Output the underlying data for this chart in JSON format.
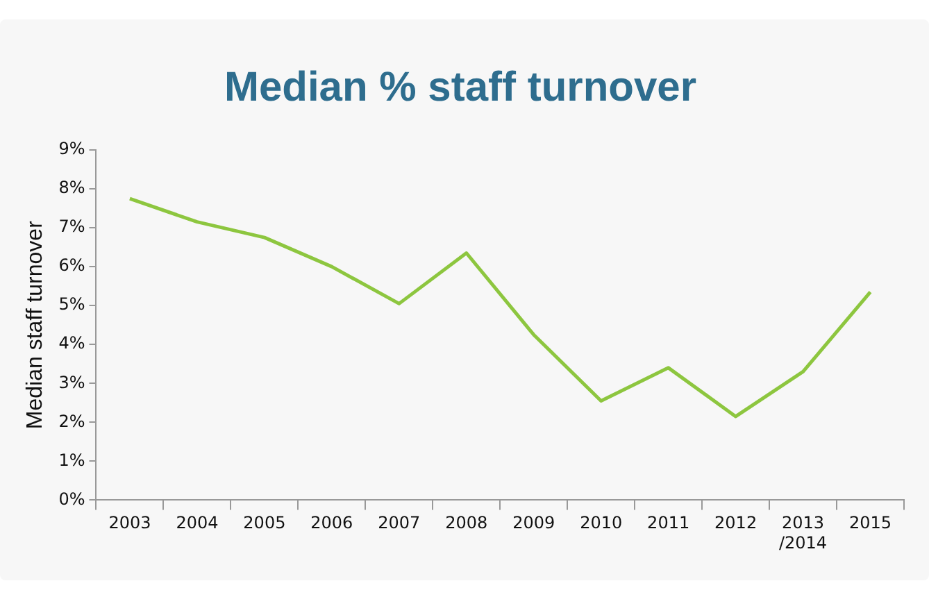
{
  "chart_data": {
    "type": "line",
    "title": "Median % staff turnover",
    "ylabel": "Median staff turnover",
    "categories": [
      "2003",
      "2004",
      "2005",
      "2006",
      "2007",
      "2008",
      "2009",
      "2010",
      "2011",
      "2012",
      "2013\n/2014",
      "2015"
    ],
    "series": [
      {
        "color": "#8dc63f",
        "values": [
          7.75,
          7.15,
          6.75,
          6.0,
          5.05,
          6.35,
          4.25,
          2.55,
          3.4,
          2.15,
          3.3,
          5.35
        ]
      }
    ],
    "ylim": [
      0,
      9
    ],
    "yticks": [
      {
        "value": 0,
        "label": "0%"
      },
      {
        "value": 1,
        "label": "1%"
      },
      {
        "value": 2,
        "label": "2%"
      },
      {
        "value": 3,
        "label": "3%"
      },
      {
        "value": 4,
        "label": "4%"
      },
      {
        "value": 5,
        "label": "5%"
      },
      {
        "value": 6,
        "label": "6%"
      },
      {
        "value": 7,
        "label": "7%"
      },
      {
        "value": 8,
        "label": "8%"
      },
      {
        "value": 9,
        "label": "9%"
      }
    ],
    "grid": false,
    "legend": false,
    "marker": "none",
    "line_style": "solid"
  }
}
